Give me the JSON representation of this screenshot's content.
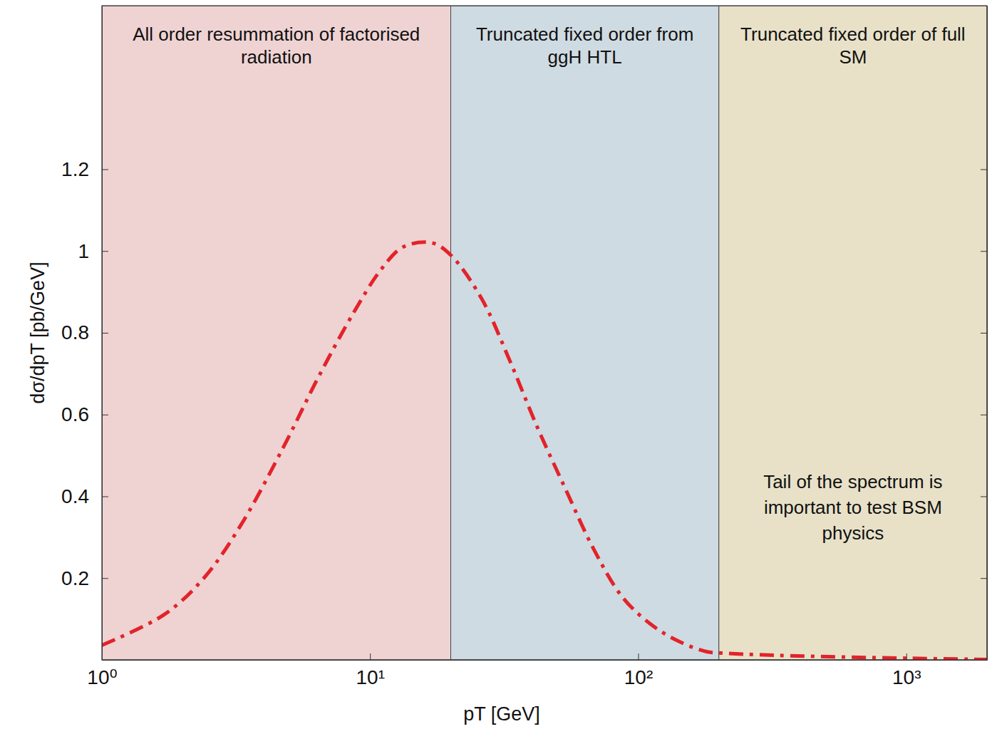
{
  "chart_data": {
    "type": "line",
    "x_label": "pT [GeV]",
    "y_label": "dσ/dpT [pb/GeV]",
    "log": "x",
    "grid": false,
    "xlim": [
      1,
      2000
    ],
    "ylim": [
      0,
      1.6
    ],
    "xticks": [
      {
        "value": 1,
        "label": "10⁰"
      },
      {
        "value": 10,
        "label": "10¹"
      },
      {
        "value": 100,
        "label": "10²"
      },
      {
        "value": 1000,
        "label": "10³"
      }
    ],
    "yticks": [
      0.2,
      0.4,
      0.6,
      0.8,
      1,
      1.2
    ],
    "x": [
      1,
      1.7,
      2.4,
      3.3,
      4.75,
      6.4,
      8.7,
      11,
      13.3,
      17,
      20,
      26,
      33,
      42,
      54,
      68,
      87,
      111,
      141,
      180,
      200,
      330,
      1000,
      2000
    ],
    "series": [
      {
        "color": "#e3232a",
        "line_style": "dashdot",
        "values": [
          0.036,
          0.11,
          0.2,
          0.33,
          0.52,
          0.69,
          0.85,
          0.955,
          1.01,
          1.02,
          0.99,
          0.885,
          0.736,
          0.57,
          0.413,
          0.273,
          0.155,
          0.088,
          0.046,
          0.02,
          0.017,
          0.011,
          0.004,
          0.001
        ]
      }
    ],
    "regions": [
      {
        "label": "All order resummation of factorised radiation",
        "x": [
          1,
          20
        ],
        "color": "#efd3d3"
      },
      {
        "label": "Truncated fixed order from ggH HTL",
        "x": [
          20,
          200
        ],
        "color": "#cfdbe2"
      },
      {
        "label": "Truncated fixed order of full SM",
        "x": [
          200,
          2000
        ],
        "color": "#e8e1c8"
      }
    ],
    "annotations": [
      {
        "text": "Tail of the spectrum is important to test BSM physics"
      }
    ]
  }
}
